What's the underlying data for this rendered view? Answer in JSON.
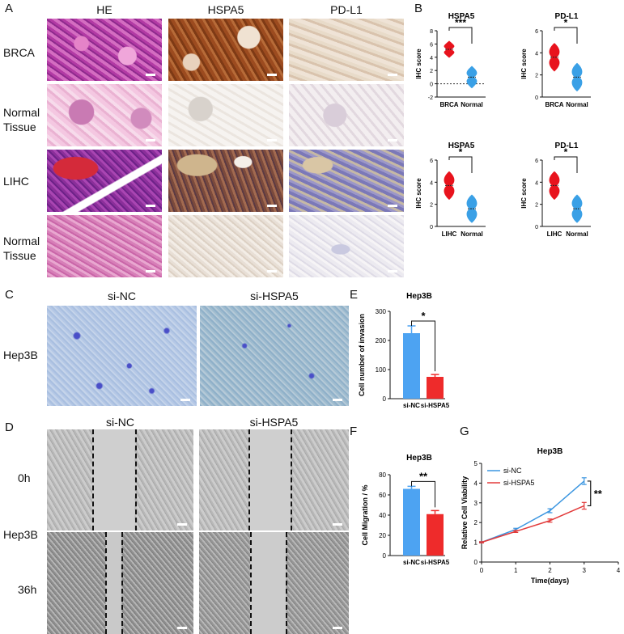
{
  "panel_letters": {
    "a": "A",
    "b": "B",
    "c": "C",
    "d": "D",
    "e": "E",
    "f": "F",
    "g": "G"
  },
  "panelA": {
    "columns": [
      "HE",
      "HSPA5",
      "PD-L1"
    ],
    "rows": [
      {
        "label_lines": [
          "BRCA"
        ]
      },
      {
        "label_lines": [
          "Normal",
          "Tissue"
        ]
      },
      {
        "label_lines": [
          "LIHC"
        ]
      },
      {
        "label_lines": [
          "Normal",
          "Tissue"
        ]
      }
    ]
  },
  "panelC": {
    "columns": [
      "si-NC",
      "si-HSPA5"
    ],
    "row_label": "Hep3B"
  },
  "panelD": {
    "columns": [
      "si-NC",
      "si-HSPA5"
    ],
    "row_labels": {
      "t0": "0h",
      "cell": "Hep3B",
      "t36": "36h"
    }
  },
  "chart_data": [
    {
      "id": "B1",
      "type": "violin",
      "title": "HSPA5",
      "ylabel": "IHC score",
      "categories": [
        "BRCA",
        "Normal"
      ],
      "ylim": [
        -2,
        8
      ],
      "yticks": [
        -2,
        0,
        2,
        4,
        6,
        8
      ],
      "dashed_zero_line": true,
      "series": [
        {
          "category": "BRCA",
          "center": 5.2,
          "spread": 0.8,
          "color": "#e8131d"
        },
        {
          "category": "Normal",
          "center": 1.0,
          "spread": 1.2,
          "color": "#3aa0e6"
        }
      ],
      "significance": "***"
    },
    {
      "id": "B2",
      "type": "violin",
      "title": "PD-L1",
      "ylabel": "IHC score",
      "categories": [
        "BRCA",
        "Normal"
      ],
      "ylim": [
        0,
        6
      ],
      "yticks": [
        0,
        2,
        4,
        6
      ],
      "series": [
        {
          "category": "BRCA",
          "center": 3.6,
          "spread": 1.0,
          "color": "#e8131d"
        },
        {
          "category": "Normal",
          "center": 1.8,
          "spread": 1.0,
          "color": "#3aa0e6"
        }
      ],
      "significance": "*"
    },
    {
      "id": "B3",
      "type": "violin",
      "title": "HSPA5",
      "ylabel": "IHC score",
      "categories": [
        "LIHC",
        "Normal"
      ],
      "ylim": [
        0,
        6
      ],
      "yticks": [
        0,
        2,
        4,
        6
      ],
      "series": [
        {
          "category": "LIHC",
          "center": 3.7,
          "spread": 1.0,
          "color": "#e8131d"
        },
        {
          "category": "Normal",
          "center": 1.6,
          "spread": 1.0,
          "color": "#3aa0e6"
        }
      ],
      "significance": "*"
    },
    {
      "id": "B4",
      "type": "violin",
      "title": "PD-L1",
      "ylabel": "IHC score",
      "categories": [
        "LIHC",
        "Normal"
      ],
      "ylim": [
        0,
        6
      ],
      "yticks": [
        0,
        2,
        4,
        6
      ],
      "series": [
        {
          "category": "LIHC",
          "center": 3.7,
          "spread": 1.0,
          "color": "#e8131d"
        },
        {
          "category": "Normal",
          "center": 1.6,
          "spread": 1.0,
          "color": "#3aa0e6"
        }
      ],
      "significance": "*"
    },
    {
      "id": "E",
      "type": "bar",
      "title": "Hep3B",
      "ylabel": "Cell number of invasion",
      "categories": [
        "si-NC",
        "si-HSPA5"
      ],
      "values": [
        225,
        75
      ],
      "errors": [
        25,
        8
      ],
      "colors": [
        "#4da3f2",
        "#ee2b2b"
      ],
      "ylim": [
        0,
        300
      ],
      "yticks": [
        0,
        100,
        200,
        300
      ],
      "significance": "*"
    },
    {
      "id": "F",
      "type": "bar",
      "title": "Hep3B",
      "ylabel": "Cell Migration / %",
      "categories": [
        "si-NC",
        "si-HSPA5"
      ],
      "values": [
        66,
        41
      ],
      "errors": [
        2.5,
        3.5
      ],
      "colors": [
        "#4da3f2",
        "#ee2b2b"
      ],
      "ylim": [
        0,
        80
      ],
      "yticks": [
        0,
        20,
        40,
        60,
        80
      ],
      "significance": "**"
    },
    {
      "id": "G",
      "type": "line",
      "title": "Hep3B",
      "xlabel": "Time(days)",
      "ylabel": "Relative Cell Viability",
      "x": [
        0,
        1,
        2,
        3
      ],
      "xlim": [
        0,
        4
      ],
      "xticks": [
        0,
        1,
        2,
        3,
        4
      ],
      "ylim": [
        0,
        5
      ],
      "yticks": [
        0,
        1,
        2,
        3,
        4,
        5
      ],
      "series": [
        {
          "name": "si-NC",
          "values": [
            1.0,
            1.65,
            2.6,
            4.1
          ],
          "errors": [
            0.03,
            0.06,
            0.1,
            0.17
          ],
          "color": "#3a95e0"
        },
        {
          "name": "si-HSPA5",
          "values": [
            1.0,
            1.55,
            2.1,
            2.85
          ],
          "errors": [
            0.03,
            0.05,
            0.08,
            0.17
          ],
          "color": "#e23a3a"
        }
      ],
      "legend": "top-left",
      "significance": "**"
    }
  ]
}
